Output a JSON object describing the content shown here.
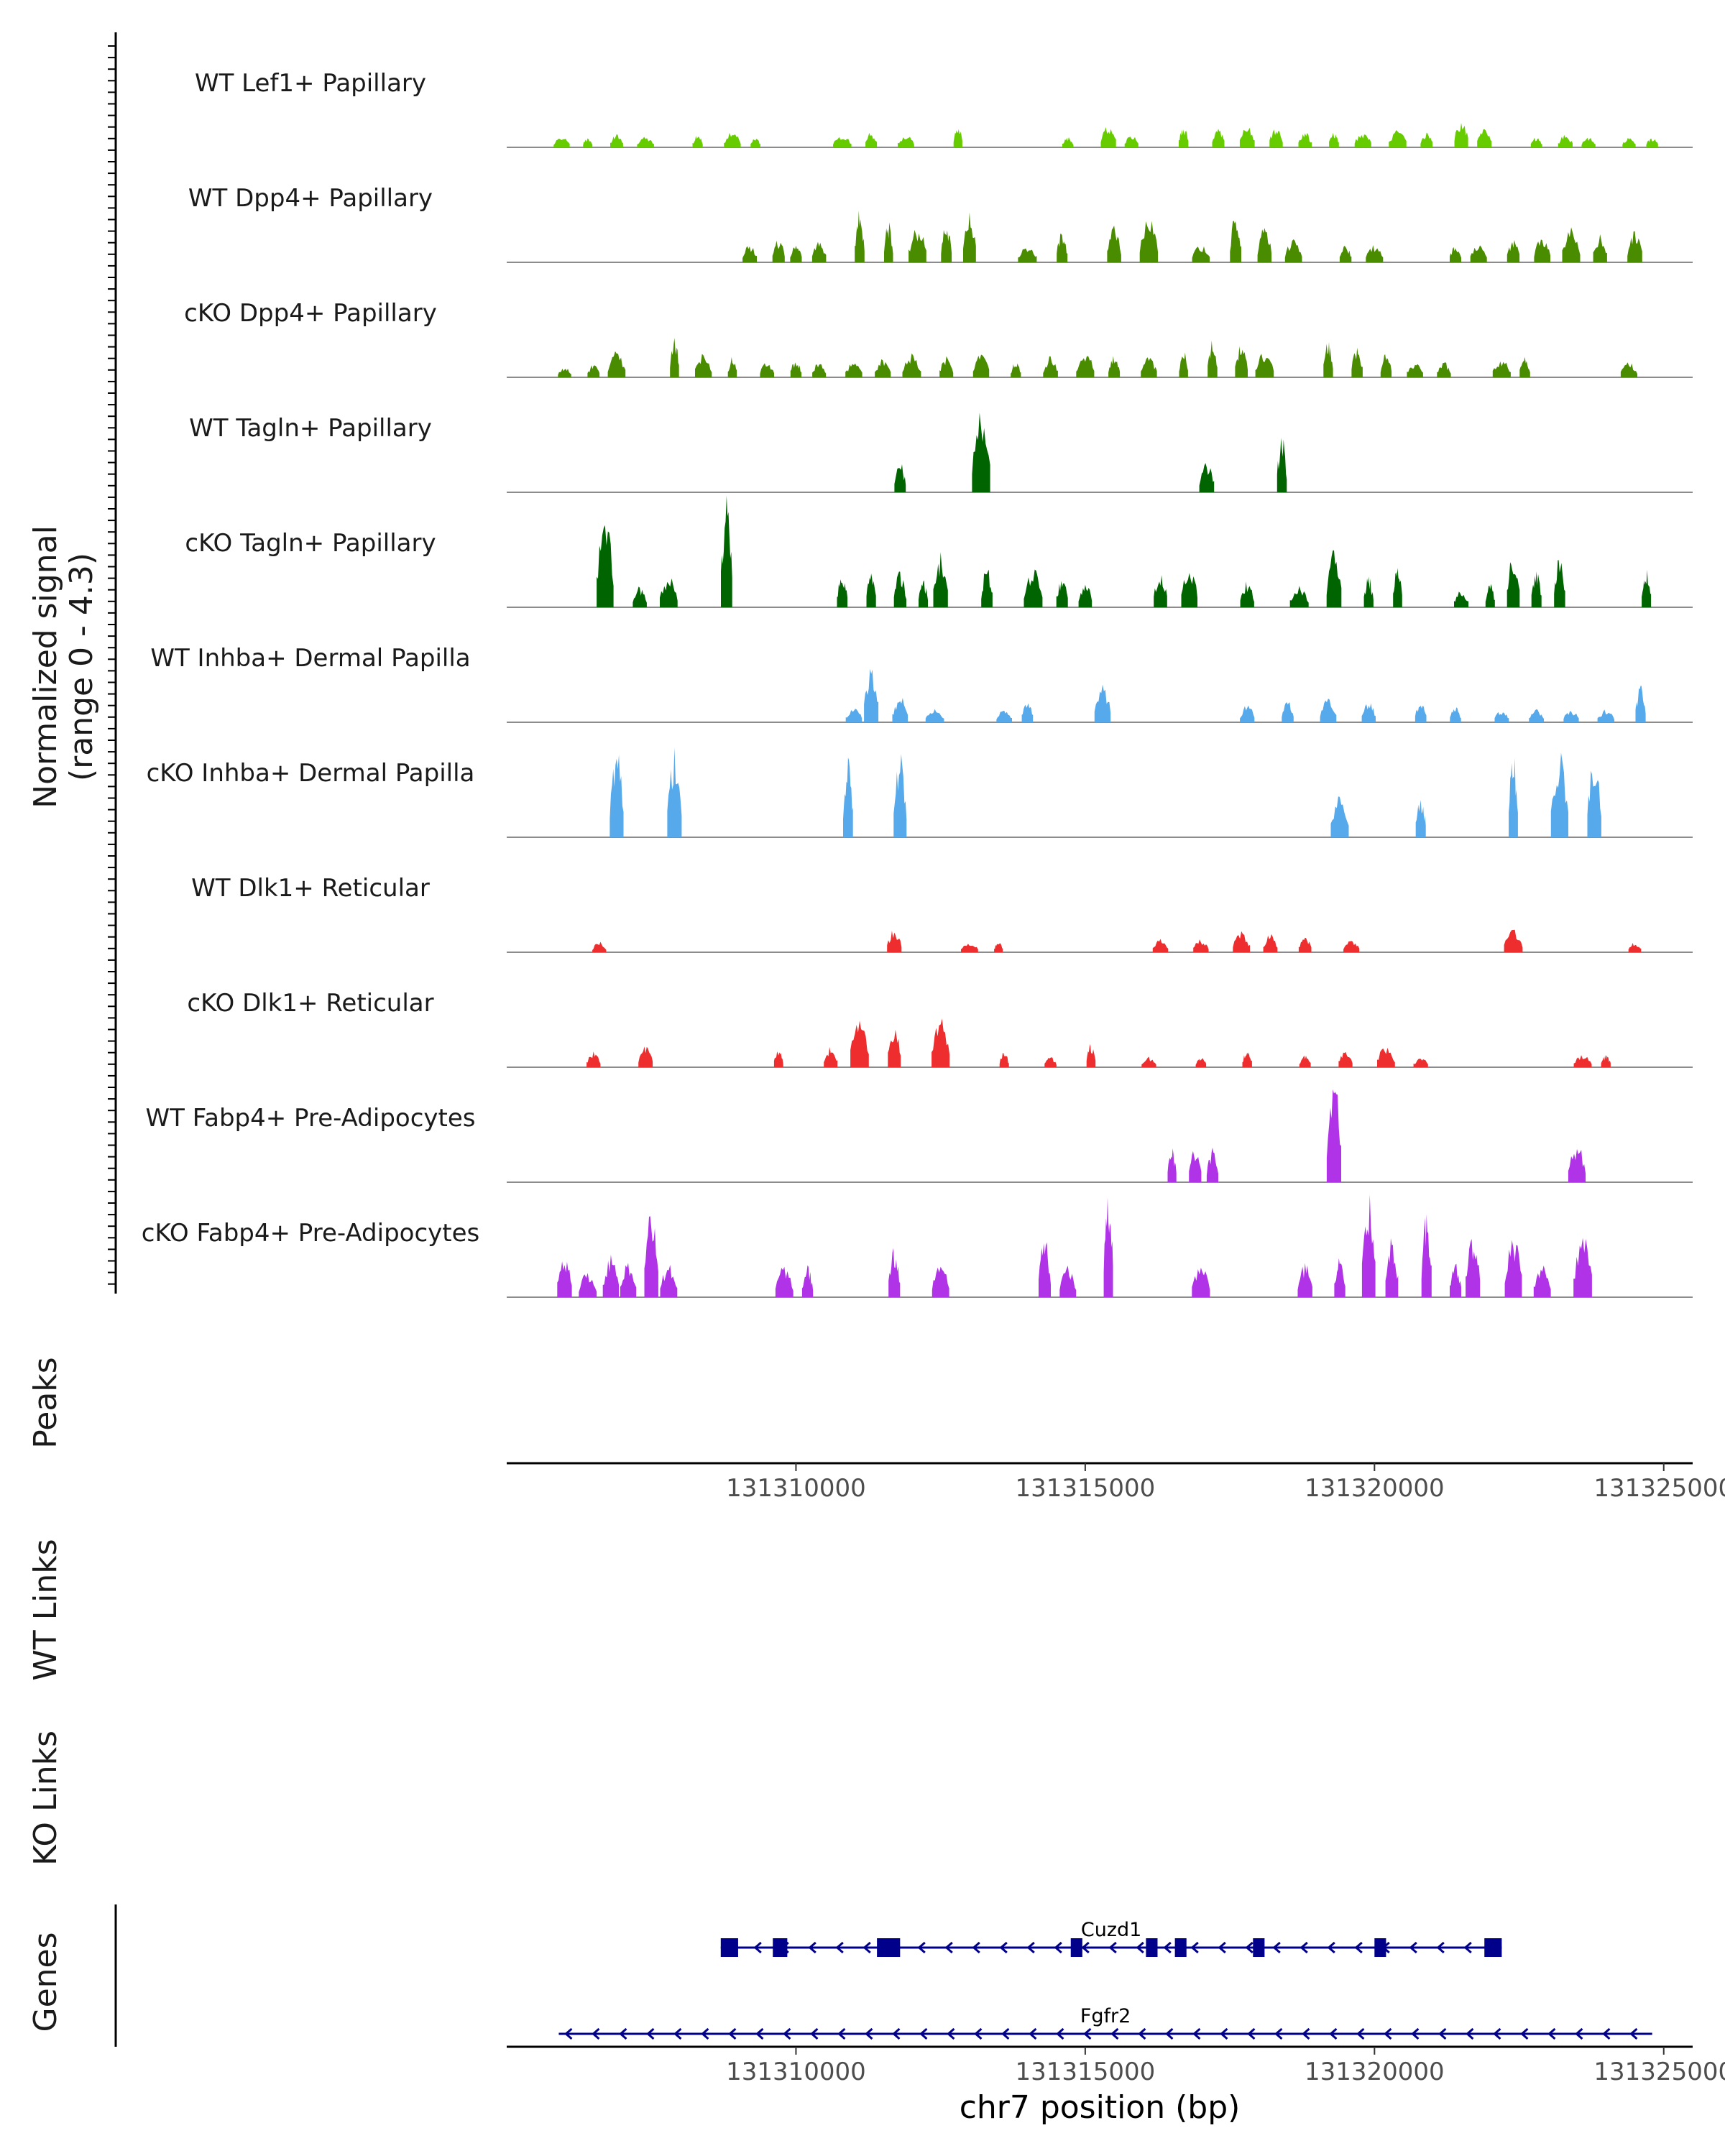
{
  "chart_data": {
    "type": "area",
    "title": "",
    "coverage_axis_label": "Normalized signal",
    "coverage_axis_range_label": "(range 0 - 4.3)",
    "ylim": [
      0,
      4.3
    ],
    "xlim": [
      131305000,
      131325500
    ],
    "xlabel": "chr7 position (bp)",
    "x_ticks": [
      131310000,
      131315000,
      131320000,
      131325000
    ],
    "x_tick_labels": [
      "131310000",
      "131315000",
      "131320000",
      "131325000"
    ],
    "tracks": [
      {
        "name": "WT Lef1+ Papillary",
        "color": "#66cc00",
        "peaks": [
          [
            131305950,
            0.4
          ],
          [
            131306400,
            0.4
          ],
          [
            131306900,
            0.5
          ],
          [
            131307400,
            0.4
          ],
          [
            131308300,
            0.5
          ],
          [
            131308900,
            0.6
          ],
          [
            131309300,
            0.4
          ],
          [
            131310800,
            0.5
          ],
          [
            131311300,
            0.6
          ],
          [
            131311900,
            0.5
          ],
          [
            131312800,
            0.9
          ],
          [
            131314700,
            0.4
          ],
          [
            131315400,
            0.9
          ],
          [
            131315800,
            0.5
          ],
          [
            131316700,
            0.8
          ],
          [
            131317300,
            0.7
          ],
          [
            131317800,
            0.9
          ],
          [
            131318300,
            0.8
          ],
          [
            131318800,
            0.6
          ],
          [
            131319300,
            0.6
          ],
          [
            131319800,
            0.6
          ],
          [
            131320400,
            0.7
          ],
          [
            131320900,
            0.6
          ],
          [
            131321500,
            1.1
          ],
          [
            131321900,
            0.8
          ],
          [
            131322800,
            0.4
          ],
          [
            131323300,
            0.5
          ],
          [
            131323700,
            0.4
          ],
          [
            131324400,
            0.4
          ],
          [
            131324800,
            0.4
          ]
        ]
      },
      {
        "name": "WT Dpp4+ Papillary",
        "color": "#4a8c00",
        "peaks": [
          [
            131309200,
            0.7
          ],
          [
            131309700,
            0.9
          ],
          [
            131310000,
            0.7
          ],
          [
            131310400,
            0.8
          ],
          [
            131311100,
            2.0
          ],
          [
            131311600,
            1.6
          ],
          [
            131312100,
            1.4
          ],
          [
            131312600,
            1.5
          ],
          [
            131313000,
            1.9
          ],
          [
            131314000,
            0.7
          ],
          [
            131314600,
            1.2
          ],
          [
            131315500,
            1.4
          ],
          [
            131316100,
            1.7
          ],
          [
            131317000,
            0.7
          ],
          [
            131317600,
            1.9
          ],
          [
            131318100,
            1.4
          ],
          [
            131318600,
            0.9
          ],
          [
            131319500,
            0.7
          ],
          [
            131320000,
            0.7
          ],
          [
            131321400,
            0.7
          ],
          [
            131321800,
            0.7
          ],
          [
            131322400,
            0.9
          ],
          [
            131322900,
            1.0
          ],
          [
            131323400,
            1.4
          ],
          [
            131323900,
            1.1
          ],
          [
            131324500,
            1.2
          ]
        ]
      },
      {
        "name": "cKO Dpp4+ Papillary",
        "color": "#4a8c00",
        "peaks": [
          [
            131306000,
            0.4
          ],
          [
            131306500,
            0.5
          ],
          [
            131306900,
            1.0
          ],
          [
            131307900,
            1.6
          ],
          [
            131308400,
            0.9
          ],
          [
            131308900,
            0.8
          ],
          [
            131309500,
            0.6
          ],
          [
            131310000,
            0.7
          ],
          [
            131310400,
            0.6
          ],
          [
            131311000,
            0.6
          ],
          [
            131311500,
            0.7
          ],
          [
            131312000,
            0.9
          ],
          [
            131312600,
            0.8
          ],
          [
            131313200,
            0.9
          ],
          [
            131313800,
            0.6
          ],
          [
            131314400,
            0.8
          ],
          [
            131315000,
            1.0
          ],
          [
            131315500,
            0.9
          ],
          [
            131316100,
            0.8
          ],
          [
            131316700,
            1.1
          ],
          [
            131317200,
            1.5
          ],
          [
            131317700,
            1.3
          ],
          [
            131318100,
            1.0
          ],
          [
            131319200,
            1.4
          ],
          [
            131319700,
            1.2
          ],
          [
            131320200,
            0.9
          ],
          [
            131320700,
            0.6
          ],
          [
            131321200,
            0.6
          ],
          [
            131322200,
            0.7
          ],
          [
            131322600,
            0.8
          ],
          [
            131324400,
            0.6
          ]
        ]
      },
      {
        "name": "WT Tagln+ Papillary",
        "color": "#006400",
        "peaks": [
          [
            131311800,
            1.2
          ],
          [
            131313200,
            3.4
          ],
          [
            131317100,
            1.2
          ],
          [
            131318400,
            2.3
          ]
        ]
      },
      {
        "name": "cKO Tagln+ Papillary",
        "color": "#006400",
        "peaks": [
          [
            131306700,
            3.5
          ],
          [
            131307300,
            0.8
          ],
          [
            131307800,
            1.2
          ],
          [
            131308800,
            4.2
          ],
          [
            131310800,
            1.3
          ],
          [
            131311300,
            1.4
          ],
          [
            131311800,
            1.4
          ],
          [
            131312200,
            1.1
          ],
          [
            131312500,
            2.1
          ],
          [
            131313300,
            1.6
          ],
          [
            131314100,
            1.5
          ],
          [
            131314600,
            1.2
          ],
          [
            131315000,
            1.0
          ],
          [
            131316300,
            1.4
          ],
          [
            131316800,
            1.6
          ],
          [
            131317800,
            1.0
          ],
          [
            131318700,
            0.8
          ],
          [
            131319300,
            2.2
          ],
          [
            131319900,
            1.2
          ],
          [
            131320400,
            1.6
          ],
          [
            131321500,
            0.7
          ],
          [
            131322000,
            0.9
          ],
          [
            131322400,
            2.1
          ],
          [
            131322800,
            1.5
          ],
          [
            131323200,
            2.2
          ],
          [
            131324700,
            1.5
          ]
        ]
      },
      {
        "name": "WT Inhba+ Dermal Papilla",
        "color": "#56a9ea",
        "peaks": [
          [
            131311000,
            0.6
          ],
          [
            131311300,
            2.2
          ],
          [
            131311800,
            1.0
          ],
          [
            131312400,
            0.5
          ],
          [
            131313600,
            0.5
          ],
          [
            131314000,
            0.8
          ],
          [
            131315300,
            1.5
          ],
          [
            131317800,
            0.7
          ],
          [
            131318500,
            0.9
          ],
          [
            131319200,
            0.9
          ],
          [
            131319900,
            0.8
          ],
          [
            131320800,
            0.8
          ],
          [
            131321400,
            0.6
          ],
          [
            131322200,
            0.5
          ],
          [
            131322800,
            0.5
          ],
          [
            131323400,
            0.5
          ],
          [
            131324000,
            0.5
          ],
          [
            131324600,
            1.5
          ]
        ]
      },
      {
        "name": "cKO Inhba+ Dermal Papilla",
        "color": "#56a9ea",
        "peaks": [
          [
            131306900,
            3.4
          ],
          [
            131307900,
            3.4
          ],
          [
            131310900,
            3.3
          ],
          [
            131311800,
            3.4
          ],
          [
            131319400,
            1.6
          ],
          [
            131320800,
            1.6
          ],
          [
            131322400,
            3.4
          ],
          [
            131323200,
            3.4
          ],
          [
            131323800,
            3.4
          ]
        ]
      },
      {
        "name": "WT Dlk1+ Reticular",
        "color": "#ee2e2e",
        "peaks": [
          [
            131306600,
            0.4
          ],
          [
            131311700,
            0.9
          ],
          [
            131313000,
            0.4
          ],
          [
            131313500,
            0.4
          ],
          [
            131316300,
            0.5
          ],
          [
            131317000,
            0.5
          ],
          [
            131317700,
            0.8
          ],
          [
            131318200,
            0.7
          ],
          [
            131318800,
            0.6
          ],
          [
            131319600,
            0.5
          ],
          [
            131322400,
            0.9
          ],
          [
            131324500,
            0.4
          ]
        ]
      },
      {
        "name": "cKO Dlk1+ Reticular",
        "color": "#ee2e2e",
        "peaks": [
          [
            131306500,
            0.6
          ],
          [
            131307400,
            0.8
          ],
          [
            131309700,
            0.7
          ],
          [
            131310600,
            0.8
          ],
          [
            131311100,
            2.0
          ],
          [
            131311700,
            1.6
          ],
          [
            131312500,
            1.9
          ],
          [
            131313600,
            0.6
          ],
          [
            131314400,
            0.4
          ],
          [
            131315100,
            0.9
          ],
          [
            131316100,
            0.4
          ],
          [
            131317000,
            0.4
          ],
          [
            131317800,
            0.7
          ],
          [
            131318800,
            0.5
          ],
          [
            131319500,
            0.7
          ],
          [
            131320200,
            0.9
          ],
          [
            131320800,
            0.4
          ],
          [
            131323600,
            0.5
          ],
          [
            131324000,
            0.5
          ]
        ]
      },
      {
        "name": "WT Fabp4+ Pre-Adipocytes",
        "color": "#b033e8",
        "peaks": [
          [
            131316500,
            1.3
          ],
          [
            131316900,
            1.3
          ],
          [
            131317200,
            1.3
          ],
          [
            131319300,
            4.1
          ],
          [
            131323500,
            1.5
          ]
        ]
      },
      {
        "name": "cKO Fabp4+ Pre-Adipocytes",
        "color": "#b033e8",
        "peaks": [
          [
            131306000,
            1.6
          ],
          [
            131306400,
            1.0
          ],
          [
            131306800,
            1.6
          ],
          [
            131307100,
            1.4
          ],
          [
            131307500,
            3.4
          ],
          [
            131307800,
            1.3
          ],
          [
            131309800,
            1.2
          ],
          [
            131310200,
            1.2
          ],
          [
            131311700,
            1.9
          ],
          [
            131312500,
            1.3
          ],
          [
            131314300,
            2.4
          ],
          [
            131314700,
            1.2
          ],
          [
            131315400,
            4.1
          ],
          [
            131317000,
            1.3
          ],
          [
            131318800,
            1.3
          ],
          [
            131319400,
            1.5
          ],
          [
            131319900,
            4.1
          ],
          [
            131320300,
            2.4
          ],
          [
            131320900,
            3.4
          ],
          [
            131321400,
            1.3
          ],
          [
            131321700,
            2.4
          ],
          [
            131322400,
            2.4
          ],
          [
            131322900,
            1.3
          ],
          [
            131323600,
            2.4
          ]
        ]
      }
    ],
    "peaks_track_label": "Peaks",
    "links_tracks": [
      {
        "name": "WT Links",
        "links": []
      },
      {
        "name": "KO Links",
        "links": []
      }
    ],
    "genes_track_label": "Genes",
    "genes": [
      {
        "name": "Cuzd1",
        "strand": "-",
        "start": 131308700,
        "end": 131322200,
        "color": "#00008b",
        "exons": [
          [
            131308700,
            131309000
          ],
          [
            131309600,
            131309850
          ],
          [
            131311400,
            131311800
          ],
          [
            131314750,
            131314950
          ],
          [
            131316050,
            131316250
          ],
          [
            131316550,
            131316750
          ],
          [
            131317900,
            131318100
          ],
          [
            131320000,
            131320200
          ],
          [
            131321900,
            131322200
          ]
        ]
      },
      {
        "name": "Fgfr2",
        "strand": "-",
        "start": 131305900,
        "end": 131324800,
        "color": "#00008b",
        "exons": []
      }
    ]
  }
}
